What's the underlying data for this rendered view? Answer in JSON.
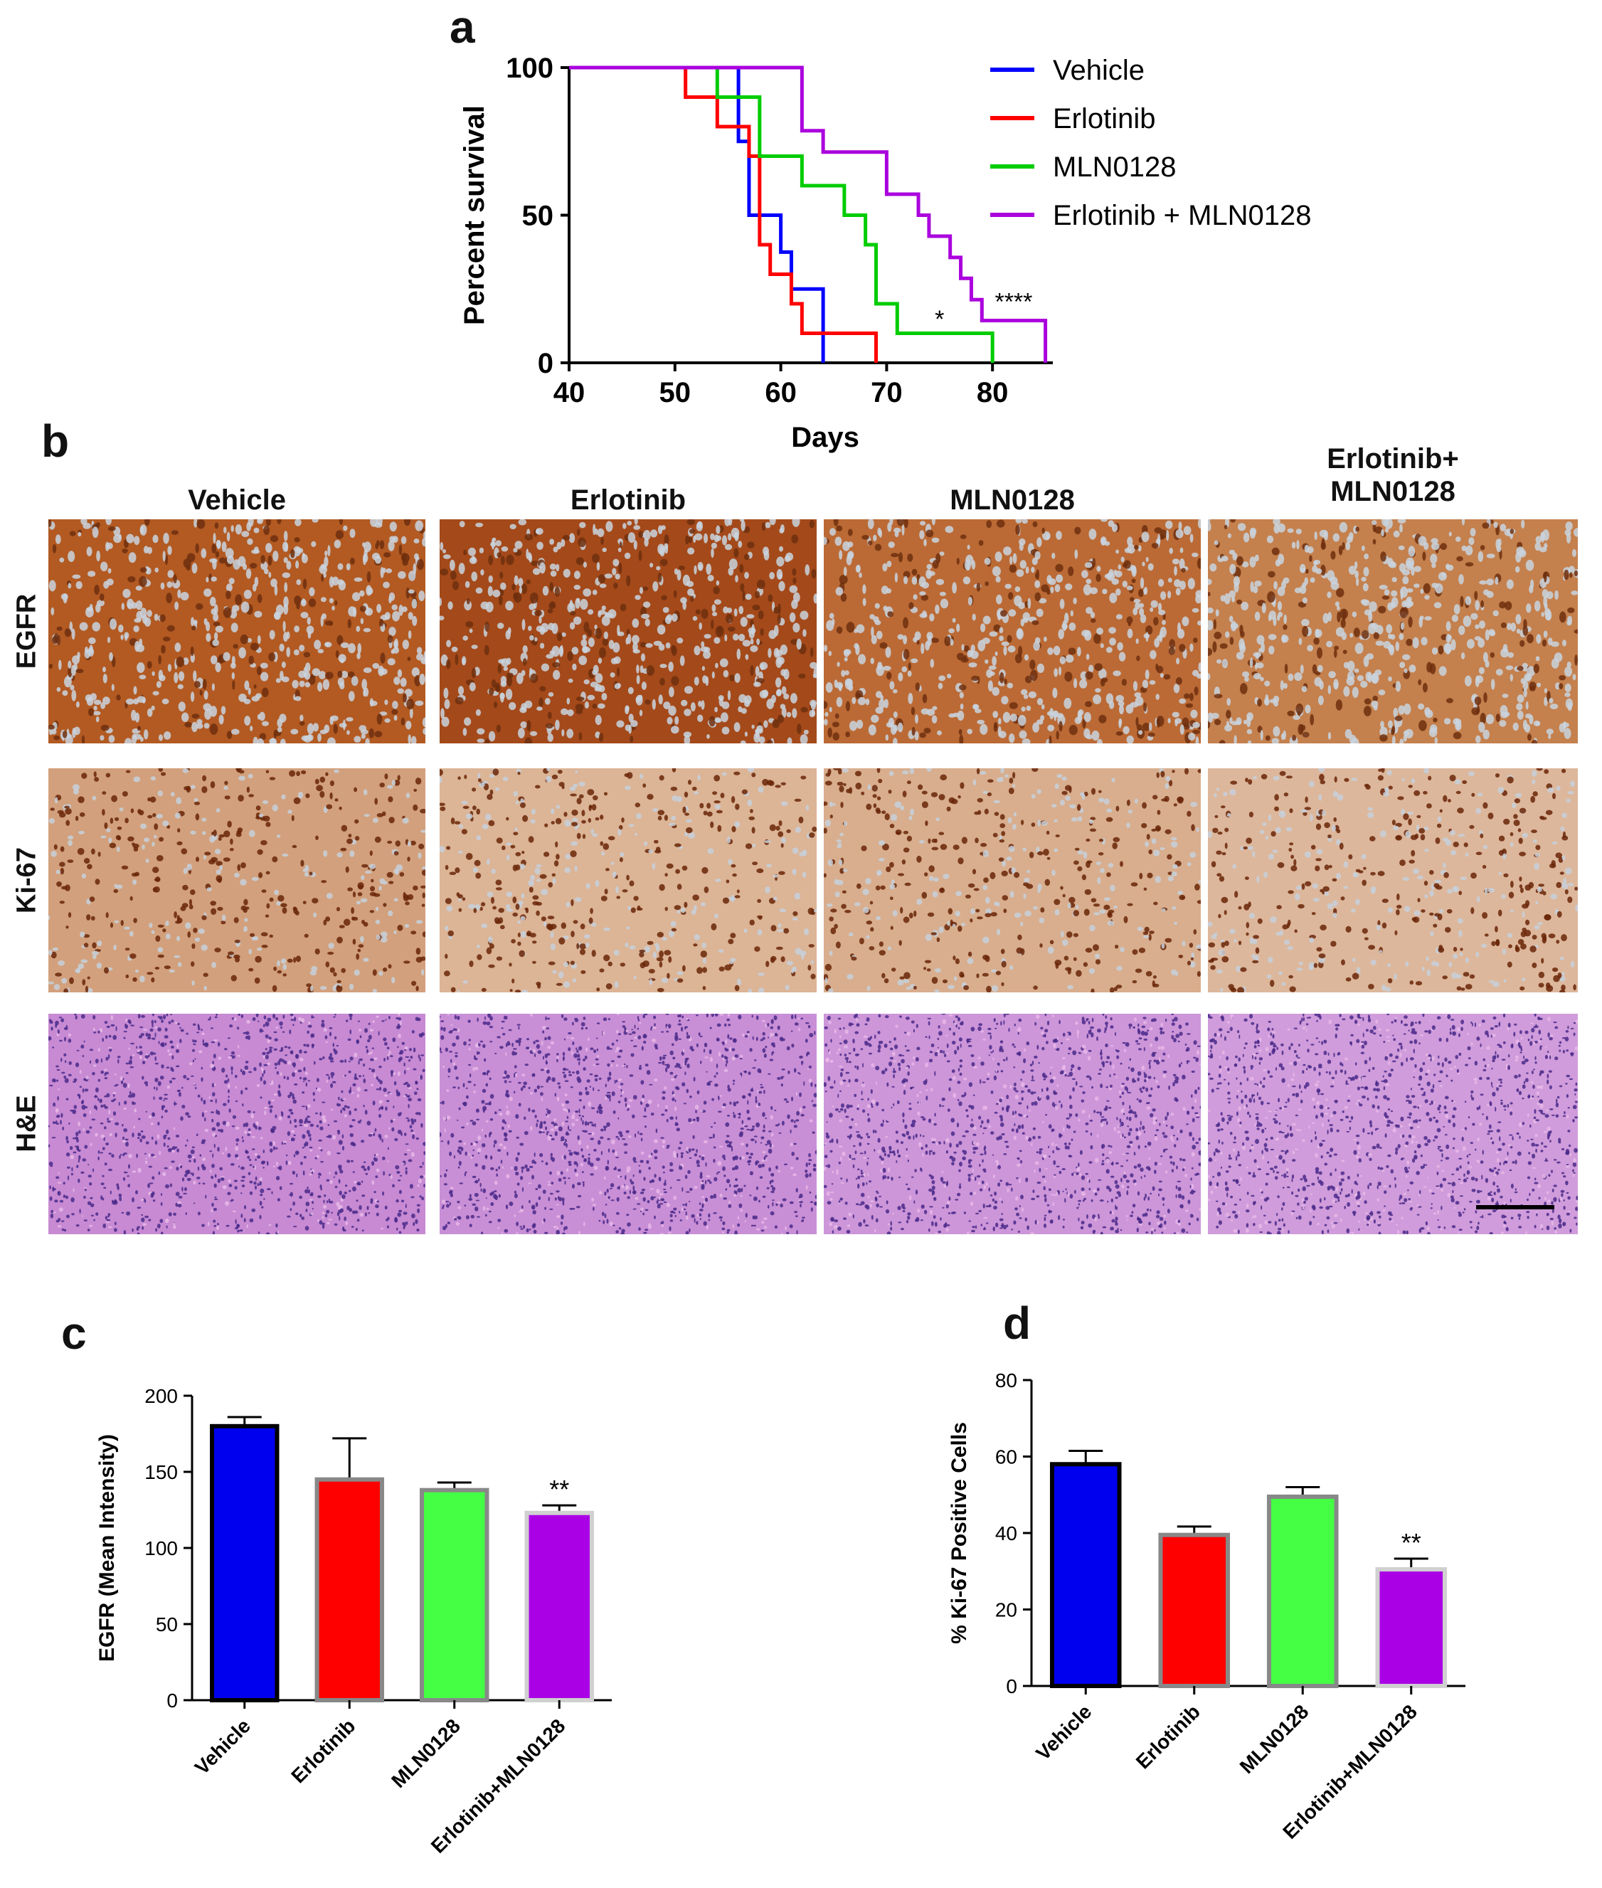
{
  "panels": {
    "a": "a",
    "b": "b",
    "c": "c",
    "d": "d"
  },
  "colors": {
    "vehicle": "#0000ff",
    "erlotinib": "#ff0000",
    "mln0128": "#00cc00",
    "combo": "#aa00dd",
    "bar_vehicle": "#0000ee",
    "bar_erlotinib": "#ff0000",
    "bar_mln0128": "#44ff44",
    "bar_combo": "#aa00e6"
  },
  "chart_data": [
    {
      "id": "a",
      "type": "line",
      "step": true,
      "xlabel": "Days",
      "ylabel": "Percent survival",
      "xlim": [
        40,
        86
      ],
      "ylim": [
        0,
        100
      ],
      "xticks": [
        40,
        50,
        60,
        70,
        80
      ],
      "yticks": [
        0,
        50,
        100
      ],
      "legend_position": "top-right",
      "series": [
        {
          "name": "Vehicle",
          "color_key": "vehicle",
          "x": [
            40,
            56,
            57,
            60,
            61,
            62,
            64
          ],
          "y": [
            100,
            75,
            50,
            37.5,
            25,
            25,
            0
          ]
        },
        {
          "name": "Erlotinib",
          "color_key": "erlotinib",
          "x": [
            40,
            51,
            54,
            55,
            57,
            58,
            59,
            61,
            62,
            64,
            69
          ],
          "y": [
            100,
            90,
            80,
            80,
            70,
            40,
            30,
            20,
            10,
            10,
            0
          ]
        },
        {
          "name": "MLN0128",
          "color_key": "mln0128",
          "x": [
            40,
            54,
            55,
            58,
            62,
            66,
            68,
            69,
            71,
            80
          ],
          "y": [
            100,
            90,
            90,
            70,
            60,
            50,
            40,
            20,
            10,
            0
          ]
        },
        {
          "name": "Erlotinib + MLN0128",
          "color_key": "combo",
          "x": [
            40,
            62,
            64,
            66,
            70,
            73,
            74,
            75,
            76,
            77,
            78,
            79,
            85
          ],
          "y": [
            100,
            78.6,
            71.4,
            71.4,
            57.1,
            50,
            42.9,
            42.9,
            35.7,
            28.6,
            21.4,
            14.3,
            0
          ]
        }
      ],
      "annotations": [
        {
          "text": "*",
          "x": 75,
          "y": 12
        },
        {
          "text": "****",
          "x": 82,
          "y": 18
        }
      ]
    },
    {
      "id": "c",
      "type": "bar",
      "categories": [
        "Vehicle",
        "Erlotinib",
        "MLN0128",
        "Erlotinib+MLN0128"
      ],
      "values": [
        180,
        145,
        138,
        123
      ],
      "errors": [
        6,
        27,
        5,
        5
      ],
      "ylabel": "EGFR (Mean Intensity)",
      "xlabel": "",
      "ylim": [
        0,
        200
      ],
      "yticks": [
        0,
        50,
        100,
        150,
        200
      ],
      "annotations": [
        {
          "text": "**",
          "category": "Erlotinib+MLN0128"
        }
      ]
    },
    {
      "id": "d",
      "type": "bar",
      "categories": [
        "Vehicle",
        "Erlotinib",
        "MLN0128",
        "Erlotinib+MLN0128"
      ],
      "values": [
        58,
        39.5,
        49.5,
        30.5
      ],
      "errors": [
        3.5,
        2.2,
        2.5,
        2.8
      ],
      "ylabel": "% Ki-67 Positive Cells",
      "xlabel": "",
      "ylim": [
        0,
        80
      ],
      "yticks": [
        0,
        20,
        40,
        60,
        80
      ],
      "annotations": [
        {
          "text": "**",
          "category": "Erlotinib+MLN0128"
        }
      ]
    }
  ],
  "histology": {
    "columns": [
      "Vehicle",
      "Erlotinib",
      "MLN0128",
      "Erlotinib+\nMLN0128"
    ],
    "rows": [
      "EGFR",
      "Ki-67",
      "H&E"
    ],
    "tile_colors": [
      [
        "#b25a22",
        "#a4491a",
        "#bb6a35",
        "#c4804d"
      ],
      [
        "#d2a07c",
        "#dcb496",
        "#d8ae8e",
        "#ddb79b"
      ],
      [
        "#c78ad3",
        "#c98fd6",
        "#cd96d9",
        "#d09cdb"
      ]
    ],
    "scale_bar": true
  }
}
